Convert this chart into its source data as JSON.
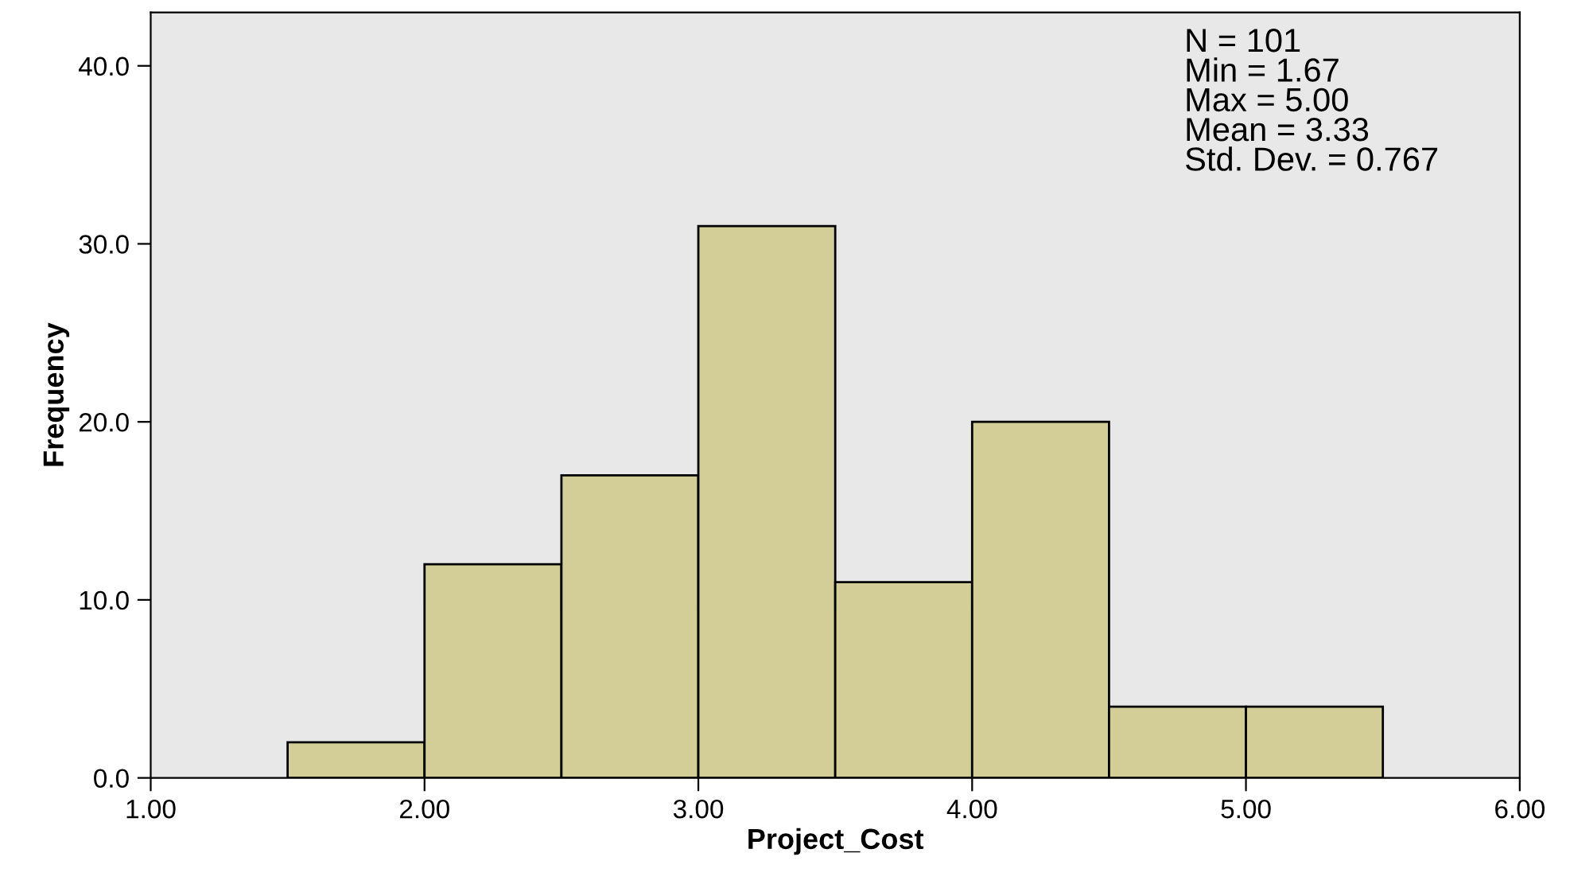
{
  "chart_data": {
    "type": "histogram",
    "xlabel": "Project_Cost",
    "ylabel": "Frequency",
    "bins": [
      1.5,
      2.0,
      2.5,
      3.0,
      3.5,
      4.0,
      4.5,
      5.0,
      5.5
    ],
    "values": [
      2,
      12,
      17,
      31,
      11,
      20,
      4,
      4
    ],
    "color": "#d3ce97",
    "xlim": [
      1,
      6
    ],
    "ylim": [
      0,
      43
    ],
    "xticks": [
      {
        "value": 1,
        "label": "1.00"
      },
      {
        "value": 2,
        "label": "2.00"
      },
      {
        "value": 3,
        "label": "3.00"
      },
      {
        "value": 4,
        "label": "4.00"
      },
      {
        "value": 5,
        "label": "5.00"
      },
      {
        "value": 6,
        "label": "6.00"
      }
    ],
    "yticks": [
      {
        "value": 0,
        "label": "0.0"
      },
      {
        "value": 10,
        "label": "10.0"
      },
      {
        "value": 20,
        "label": "20.0"
      },
      {
        "value": 30,
        "label": "30.0"
      },
      {
        "value": 40,
        "label": "40.0"
      }
    ],
    "annotations": [
      "N = 101\nMin = 1.67\nMax = 5.00\nMean = 3.33\nStd. Dev. = 0.767"
    ],
    "grid": false,
    "legend": false
  }
}
